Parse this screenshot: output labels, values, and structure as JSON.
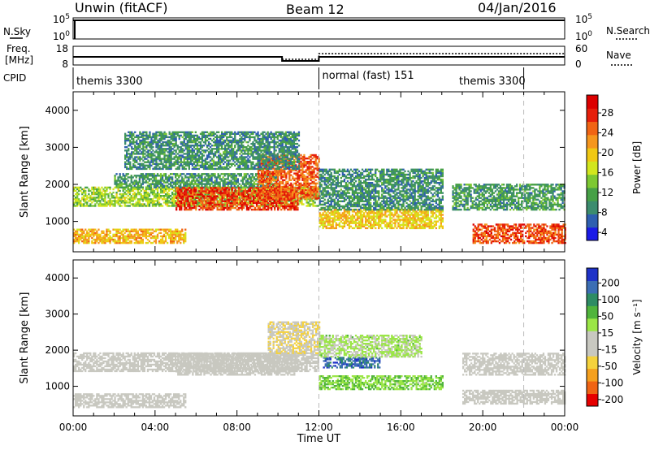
{
  "header": {
    "station": "Unwin (fitACF)",
    "beam": "Beam 12",
    "date": "04/Jan/2016"
  },
  "nsky_panel": {
    "left_label": "N.Sky",
    "right_label": "N.Search",
    "left_ticks": [
      "10^5",
      "10^0"
    ],
    "right_ticks": [
      "10^5",
      "10^0"
    ]
  },
  "freq_panel": {
    "left_label_1": "Freq.",
    "left_label_2": "[MHz]",
    "right_label": "Nave",
    "left_ticks": [
      "18",
      "8"
    ],
    "right_ticks": [
      "60",
      "0"
    ]
  },
  "cpid_panel": {
    "label": "CPID",
    "segments": [
      {
        "name": "themis 3300",
        "start_h": 0,
        "end_h": 12
      },
      {
        "name": "normal (fast) 151",
        "start_h": 12,
        "end_h": 22
      },
      {
        "name": "themis 3300",
        "start_h": 22,
        "end_h": 24
      }
    ]
  },
  "colors": {
    "power": [
      "#1a1ae6",
      "#2e5fb0",
      "#3c8c6e",
      "#46a046",
      "#7dc832",
      "#d2e61e",
      "#f0c814",
      "#f5961e",
      "#f06414",
      "#e61e0a",
      "#dc0000"
    ],
    "velocity": [
      "#e60000",
      "#f06414",
      "#f5a01e",
      "#f5d23c",
      "#c8c8c0",
      "#c8c8c0",
      "#9be646",
      "#50b43c",
      "#2e8c64",
      "#3c6eb4",
      "#1e32c8"
    ]
  },
  "chart_data": [
    {
      "type": "heatmap",
      "name": "power",
      "xlabel": "",
      "ylabel": "Slant Range [km]",
      "colorbar_label": "Power [dB]",
      "colorbar_ticks": [
        "28",
        "24",
        "20",
        "16",
        "12",
        "8",
        "4"
      ],
      "xlim": [
        0,
        24
      ],
      "ylim": [
        180,
        4500
      ],
      "yticks": [
        "1000",
        "2000",
        "3000",
        "4000"
      ],
      "value_range": [
        0,
        32
      ],
      "bands": [
        {
          "t0": 0,
          "t1": 5.5,
          "r0": 400,
          "r1": 800,
          "v": 20
        },
        {
          "t0": 0,
          "t1": 12,
          "r0": 1400,
          "r1": 1900,
          "v": 14
        },
        {
          "t0": 2,
          "t1": 10,
          "r0": 1900,
          "r1": 2300,
          "v": 9
        },
        {
          "t0": 5,
          "t1": 11,
          "r0": 1300,
          "r1": 1900,
          "v": 27
        },
        {
          "t0": 9,
          "t1": 12,
          "r0": 1600,
          "r1": 2800,
          "v": 25
        },
        {
          "t0": 12,
          "t1": 18,
          "r0": 800,
          "r1": 1300,
          "v": 19
        },
        {
          "t0": 12,
          "t1": 18,
          "r0": 1300,
          "r1": 2400,
          "v": 8
        },
        {
          "t0": 18.5,
          "t1": 24,
          "r0": 1300,
          "r1": 2000,
          "v": 9
        },
        {
          "t0": 19.5,
          "t1": 24,
          "r0": 400,
          "r1": 900,
          "v": 26
        },
        {
          "t0": 2.5,
          "t1": 11,
          "r0": 2400,
          "r1": 3400,
          "v": 8
        }
      ]
    },
    {
      "type": "heatmap",
      "name": "velocity",
      "xlabel": "Time UT",
      "ylabel": "Slant Range [km]",
      "colorbar_label": "Velocity [m s⁻¹]",
      "colorbar_ticks": [
        "200",
        "100",
        "50",
        "15",
        "-15",
        "-50",
        "-100",
        "-200"
      ],
      "xlim": [
        0,
        24
      ],
      "ylim": [
        180,
        4500
      ],
      "xticks": [
        "00:00",
        "04:00",
        "08:00",
        "12:00",
        "16:00",
        "20:00",
        "00:00"
      ],
      "yticks": [
        "1000",
        "2000",
        "3000",
        "4000"
      ],
      "value_range": [
        -250,
        250
      ],
      "bands": [
        {
          "t0": 0,
          "t1": 5.5,
          "r0": 400,
          "r1": 800,
          "v": 0
        },
        {
          "t0": 0,
          "t1": 12,
          "r0": 1400,
          "r1": 1900,
          "v": 0
        },
        {
          "t0": 5,
          "t1": 11,
          "r0": 1300,
          "r1": 1900,
          "v": 0
        },
        {
          "t0": 9.5,
          "t1": 12,
          "r0": 1900,
          "r1": 2800,
          "v": -60
        },
        {
          "t0": 12,
          "t1": 18,
          "r0": 900,
          "r1": 1300,
          "v": 60
        },
        {
          "t0": 12.2,
          "t1": 15,
          "r0": 1500,
          "r1": 1800,
          "v": 180
        },
        {
          "t0": 12,
          "t1": 17,
          "r0": 1800,
          "r1": 2400,
          "v": 30
        },
        {
          "t0": 19,
          "t1": 24,
          "r0": 500,
          "r1": 900,
          "v": 0
        },
        {
          "t0": 19,
          "t1": 24,
          "r0": 1300,
          "r1": 1900,
          "v": 0
        }
      ]
    }
  ]
}
